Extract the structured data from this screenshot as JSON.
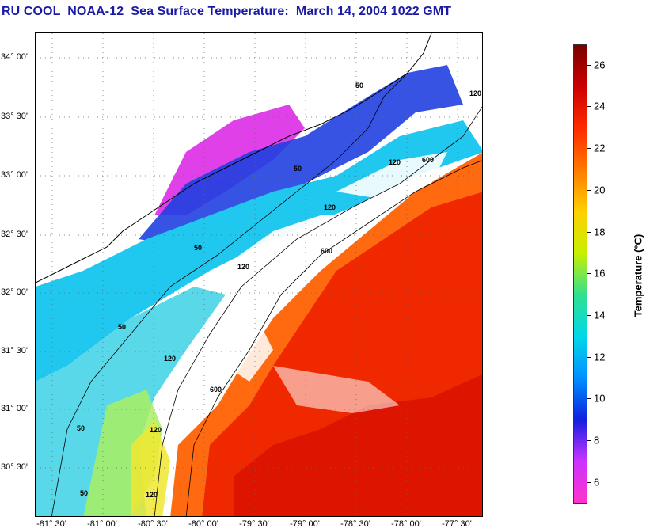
{
  "title": "RU COOL  NOAA-12  Sea Surface Temperature:  March 14, 2004 1022 GMT",
  "map": {
    "lat_labels": [
      "34° 00'",
      "33° 30'",
      "33° 00'",
      "32° 30'",
      "32° 00'",
      "31° 30'",
      "31° 00'",
      "30° 30'"
    ],
    "lon_labels": [
      "-81° 30'",
      "-81° 00'",
      "-80° 30'",
      "-80° 00'",
      "-79° 30'",
      "-79° 00'",
      "-78° 30'",
      "-78° 00'",
      "-77° 30'"
    ],
    "contour_labels": [
      "50",
      "50",
      "120",
      "120",
      "600",
      "50",
      "120",
      "600",
      "120",
      "50",
      "50",
      "120",
      "50",
      "120",
      "600",
      "120"
    ],
    "gridlines": "dotted"
  },
  "colorbar": {
    "title": "Temperature (°C)",
    "range": [
      5,
      27
    ],
    "ticks": [
      "26",
      "24",
      "22",
      "20",
      "18",
      "16",
      "14",
      "12",
      "10",
      "8",
      "6"
    ],
    "colors": [
      "#7a0000",
      "#cc0000",
      "#ff2a00",
      "#ff7a00",
      "#ffd000",
      "#c8f000",
      "#30e090",
      "#00d8e8",
      "#0090ff",
      "#1020e0",
      "#cc33ff",
      "#ff33cc"
    ]
  }
}
